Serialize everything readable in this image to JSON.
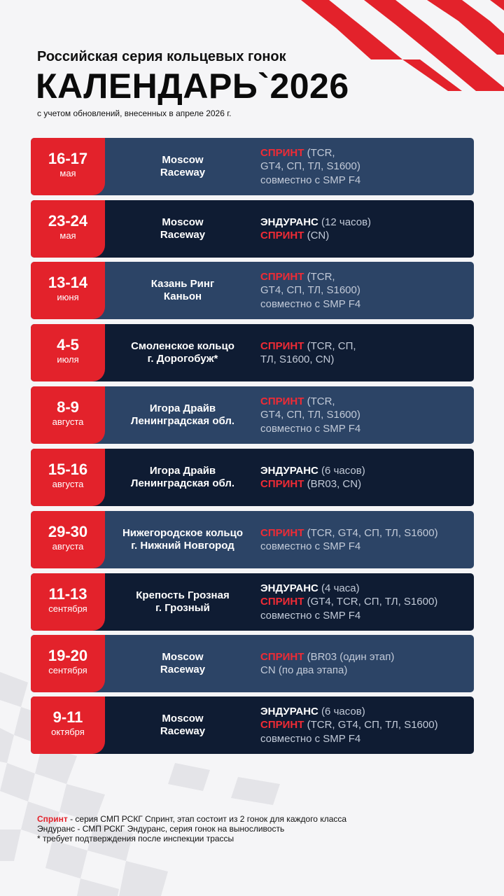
{
  "header": {
    "series": "Российская серия кольцевых гонок",
    "title": "КАЛЕНДАРЬ`2026",
    "note": "с учетом обновлений, внесенных в апреле 2026 г."
  },
  "events": [
    {
      "date": "16-17",
      "month": "мая",
      "venue": [
        "Moscow",
        "Raceway"
      ],
      "program": [
        [
          {
            "text": "СПРИНТ",
            "style": "red"
          },
          {
            "text": " (TCR,",
            "style": "grey"
          }
        ],
        [
          {
            "text": "GT4, СП, ТЛ, S1600)",
            "style": "grey"
          }
        ],
        [
          {
            "text": "совместно с SMP F4",
            "style": "grey"
          }
        ]
      ]
    },
    {
      "date": "23-24",
      "month": "мая",
      "venue": [
        "Moscow",
        "Raceway"
      ],
      "program": [
        [
          {
            "text": "ЭНДУРАНС",
            "style": "white"
          },
          {
            "text": " (12 часов)",
            "style": "grey"
          }
        ],
        [
          {
            "text": "СПРИНТ",
            "style": "red"
          },
          {
            "text": " (CN)",
            "style": "grey"
          }
        ]
      ]
    },
    {
      "date": "13-14",
      "month": "июня",
      "venue": [
        "Казань Ринг",
        "Каньон"
      ],
      "program": [
        [
          {
            "text": "СПРИНТ",
            "style": "red"
          },
          {
            "text": " (TCR,",
            "style": "grey"
          }
        ],
        [
          {
            "text": "GT4, СП, ТЛ, S1600)",
            "style": "grey"
          }
        ],
        [
          {
            "text": "совместно с SMP F4",
            "style": "grey"
          }
        ]
      ]
    },
    {
      "date": "4-5",
      "month": "июля",
      "venue": [
        "Смоленское кольцо",
        "г. Дорогобуж*"
      ],
      "program": [
        [
          {
            "text": "СПРИНТ",
            "style": "red"
          },
          {
            "text": " (TCR, СП,",
            "style": "grey"
          }
        ],
        [
          {
            "text": "ТЛ, S1600, CN)",
            "style": "grey"
          }
        ]
      ]
    },
    {
      "date": "8-9",
      "month": "августа",
      "venue": [
        "Игора Драйв",
        "Ленинградская обл."
      ],
      "program": [
        [
          {
            "text": "СПРИНТ",
            "style": "red"
          },
          {
            "text": " (TCR,",
            "style": "grey"
          }
        ],
        [
          {
            "text": "GT4, СП, ТЛ, S1600)",
            "style": "grey"
          }
        ],
        [
          {
            "text": "совместно с SMP F4",
            "style": "grey"
          }
        ]
      ]
    },
    {
      "date": "15-16",
      "month": "августа",
      "venue": [
        "Игора Драйв",
        "Ленинградская обл."
      ],
      "program": [
        [
          {
            "text": "ЭНДУРАНС",
            "style": "white"
          },
          {
            "text": " (6 часов)",
            "style": "grey"
          }
        ],
        [
          {
            "text": "СПРИНТ",
            "style": "red"
          },
          {
            "text": " (BR03, CN)",
            "style": "grey"
          }
        ]
      ]
    },
    {
      "date": "29-30",
      "month": "августа",
      "venue": [
        "Нижегородское кольцо",
        "г. Нижний Новгород"
      ],
      "program": [
        [
          {
            "text": "СПРИНТ",
            "style": "red"
          },
          {
            "text": " (TCR, GT4, СП, ТЛ, S1600)",
            "style": "grey"
          }
        ],
        [
          {
            "text": "совместно с SMP F4",
            "style": "grey"
          }
        ]
      ]
    },
    {
      "date": "11-13",
      "month": "сентября",
      "venue": [
        "Крепость Грозная",
        "г. Грозный"
      ],
      "program": [
        [
          {
            "text": "ЭНДУРАНС",
            "style": "white"
          },
          {
            "text": " (4 часа)",
            "style": "grey"
          }
        ],
        [
          {
            "text": "СПРИНТ",
            "style": "red"
          },
          {
            "text": " (GT4, TCR, СП, ТЛ, S1600)",
            "style": "grey"
          }
        ],
        [
          {
            "text": "совместно с SMP F4",
            "style": "grey"
          }
        ]
      ]
    },
    {
      "date": "19-20",
      "month": "сентября",
      "venue": [
        "Moscow",
        "Raceway"
      ],
      "program": [
        [
          {
            "text": "СПРИНТ",
            "style": "red"
          },
          {
            "text": " (BR03 (один этап)",
            "style": "grey"
          }
        ],
        [
          {
            "text": "CN (по два этапа)",
            "style": "grey"
          }
        ]
      ]
    },
    {
      "date": "9-11",
      "month": "октября",
      "venue": [
        "Moscow",
        "Raceway"
      ],
      "program": [
        [
          {
            "text": "ЭНДУРАНС",
            "style": "white"
          },
          {
            "text": " (6 часов)",
            "style": "grey"
          }
        ],
        [
          {
            "text": "СПРИНТ",
            "style": "red"
          },
          {
            "text": " (TCR, GT4, СП, ТЛ, S1600)",
            "style": "grey"
          }
        ],
        [
          {
            "text": "совместно с SMP F4",
            "style": "grey"
          }
        ]
      ]
    }
  ],
  "footer": [
    [
      {
        "text": "Спринт",
        "style": "red"
      },
      {
        "text": " - серия СМП РСКГ Спринт, этап состоит из 2 гонок для каждого класса",
        "style": "plain"
      }
    ],
    [
      {
        "text": "Эндуранс - СМП РСКГ Эндуранс, серия гонок на выносливость",
        "style": "plain"
      }
    ],
    [
      {
        "text": "* требует подтверждения после инспекции трассы",
        "style": "plain"
      }
    ]
  ]
}
